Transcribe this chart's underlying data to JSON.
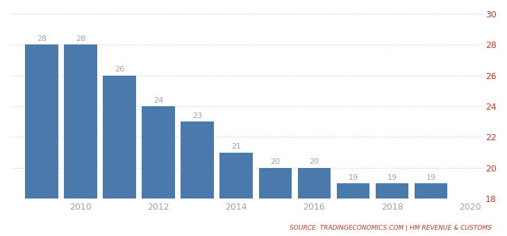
{
  "years": [
    2009,
    2010,
    2011,
    2012,
    2013,
    2014,
    2015,
    2016,
    2017,
    2018,
    2019
  ],
  "values": [
    28,
    28,
    26,
    24,
    23,
    21,
    20,
    20,
    19,
    19,
    19
  ],
  "bar_color": "#4a7aab",
  "background_color": "#ffffff",
  "ymin": 18,
  "ymax": 30,
  "yticks": [
    18,
    20,
    22,
    24,
    26,
    28,
    30
  ],
  "xtick_labels": [
    "2010",
    "2012",
    "2014",
    "2016",
    "2018",
    "2020"
  ],
  "xtick_positions": [
    2010,
    2012,
    2014,
    2016,
    2018,
    2020
  ],
  "grid_color": "#cccccc",
  "label_color": "#a0a0a0",
  "source_text": "SOURCE: TRADINGECONOMICS.COM | HM REVENUE & CUSTOMS",
  "source_color": "#c0392b",
  "ytick_color": "#c0392b",
  "bar_width": 0.85,
  "value_label_color": "#a0a0a0",
  "value_label_fontsize": 8
}
